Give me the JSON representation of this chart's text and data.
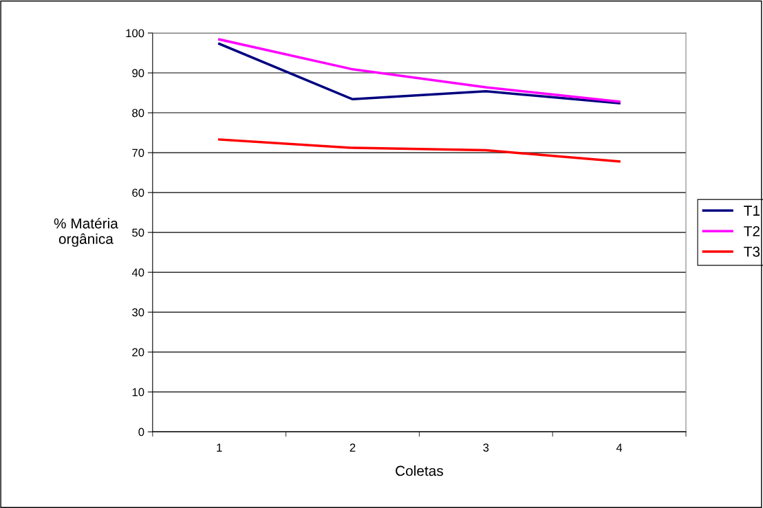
{
  "chart_data": {
    "type": "line",
    "xlabel": "Coletas",
    "ylabel": "% Matéria\norgânica",
    "categories": [
      "1",
      "2",
      "3",
      "4"
    ],
    "series": [
      {
        "name": "T1",
        "color": "#000080",
        "values": [
          97.3,
          83.4,
          85.4,
          82.4
        ]
      },
      {
        "name": "T2",
        "color": "#ff00ff",
        "values": [
          98.4,
          90.9,
          86.4,
          82.8
        ]
      },
      {
        "name": "T3",
        "color": "#ff0000",
        "values": [
          73.3,
          71.2,
          70.6,
          67.8
        ]
      }
    ],
    "ylim": [
      0,
      100
    ],
    "yticks": [
      0,
      10,
      20,
      30,
      40,
      50,
      60,
      70,
      80,
      90,
      100
    ],
    "grid": "y",
    "legend": "right",
    "marker": "none",
    "line_style": "solid"
  }
}
